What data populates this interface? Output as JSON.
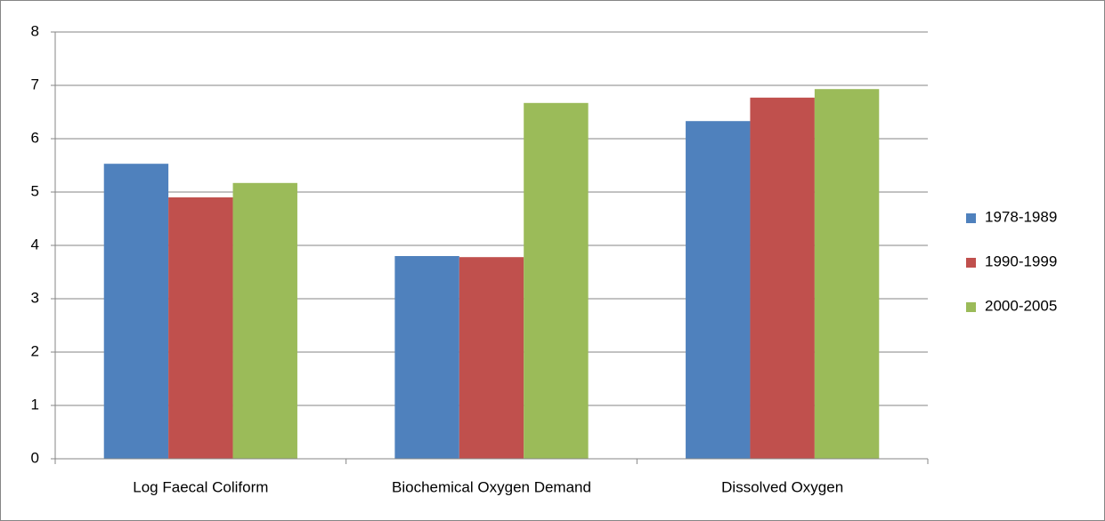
{
  "chart_data": {
    "type": "bar",
    "categories": [
      "Log Faecal Coliform",
      "Biochemical Oxygen Demand",
      "Dissolved Oxygen"
    ],
    "series": [
      {
        "name": "1978-1989",
        "color": "#4f81bd",
        "values": [
          5.53,
          3.8,
          6.33
        ]
      },
      {
        "name": "1990-1999",
        "color": "#c0504d",
        "values": [
          4.9,
          3.78,
          6.77
        ]
      },
      {
        "name": "2000-2005",
        "color": "#9bbb59",
        "values": [
          5.17,
          6.67,
          6.93
        ]
      }
    ],
    "ylim": [
      0,
      8
    ],
    "yticks": [
      0,
      1,
      2,
      3,
      4,
      5,
      6,
      7,
      8
    ],
    "grid": true,
    "legend": "right"
  }
}
